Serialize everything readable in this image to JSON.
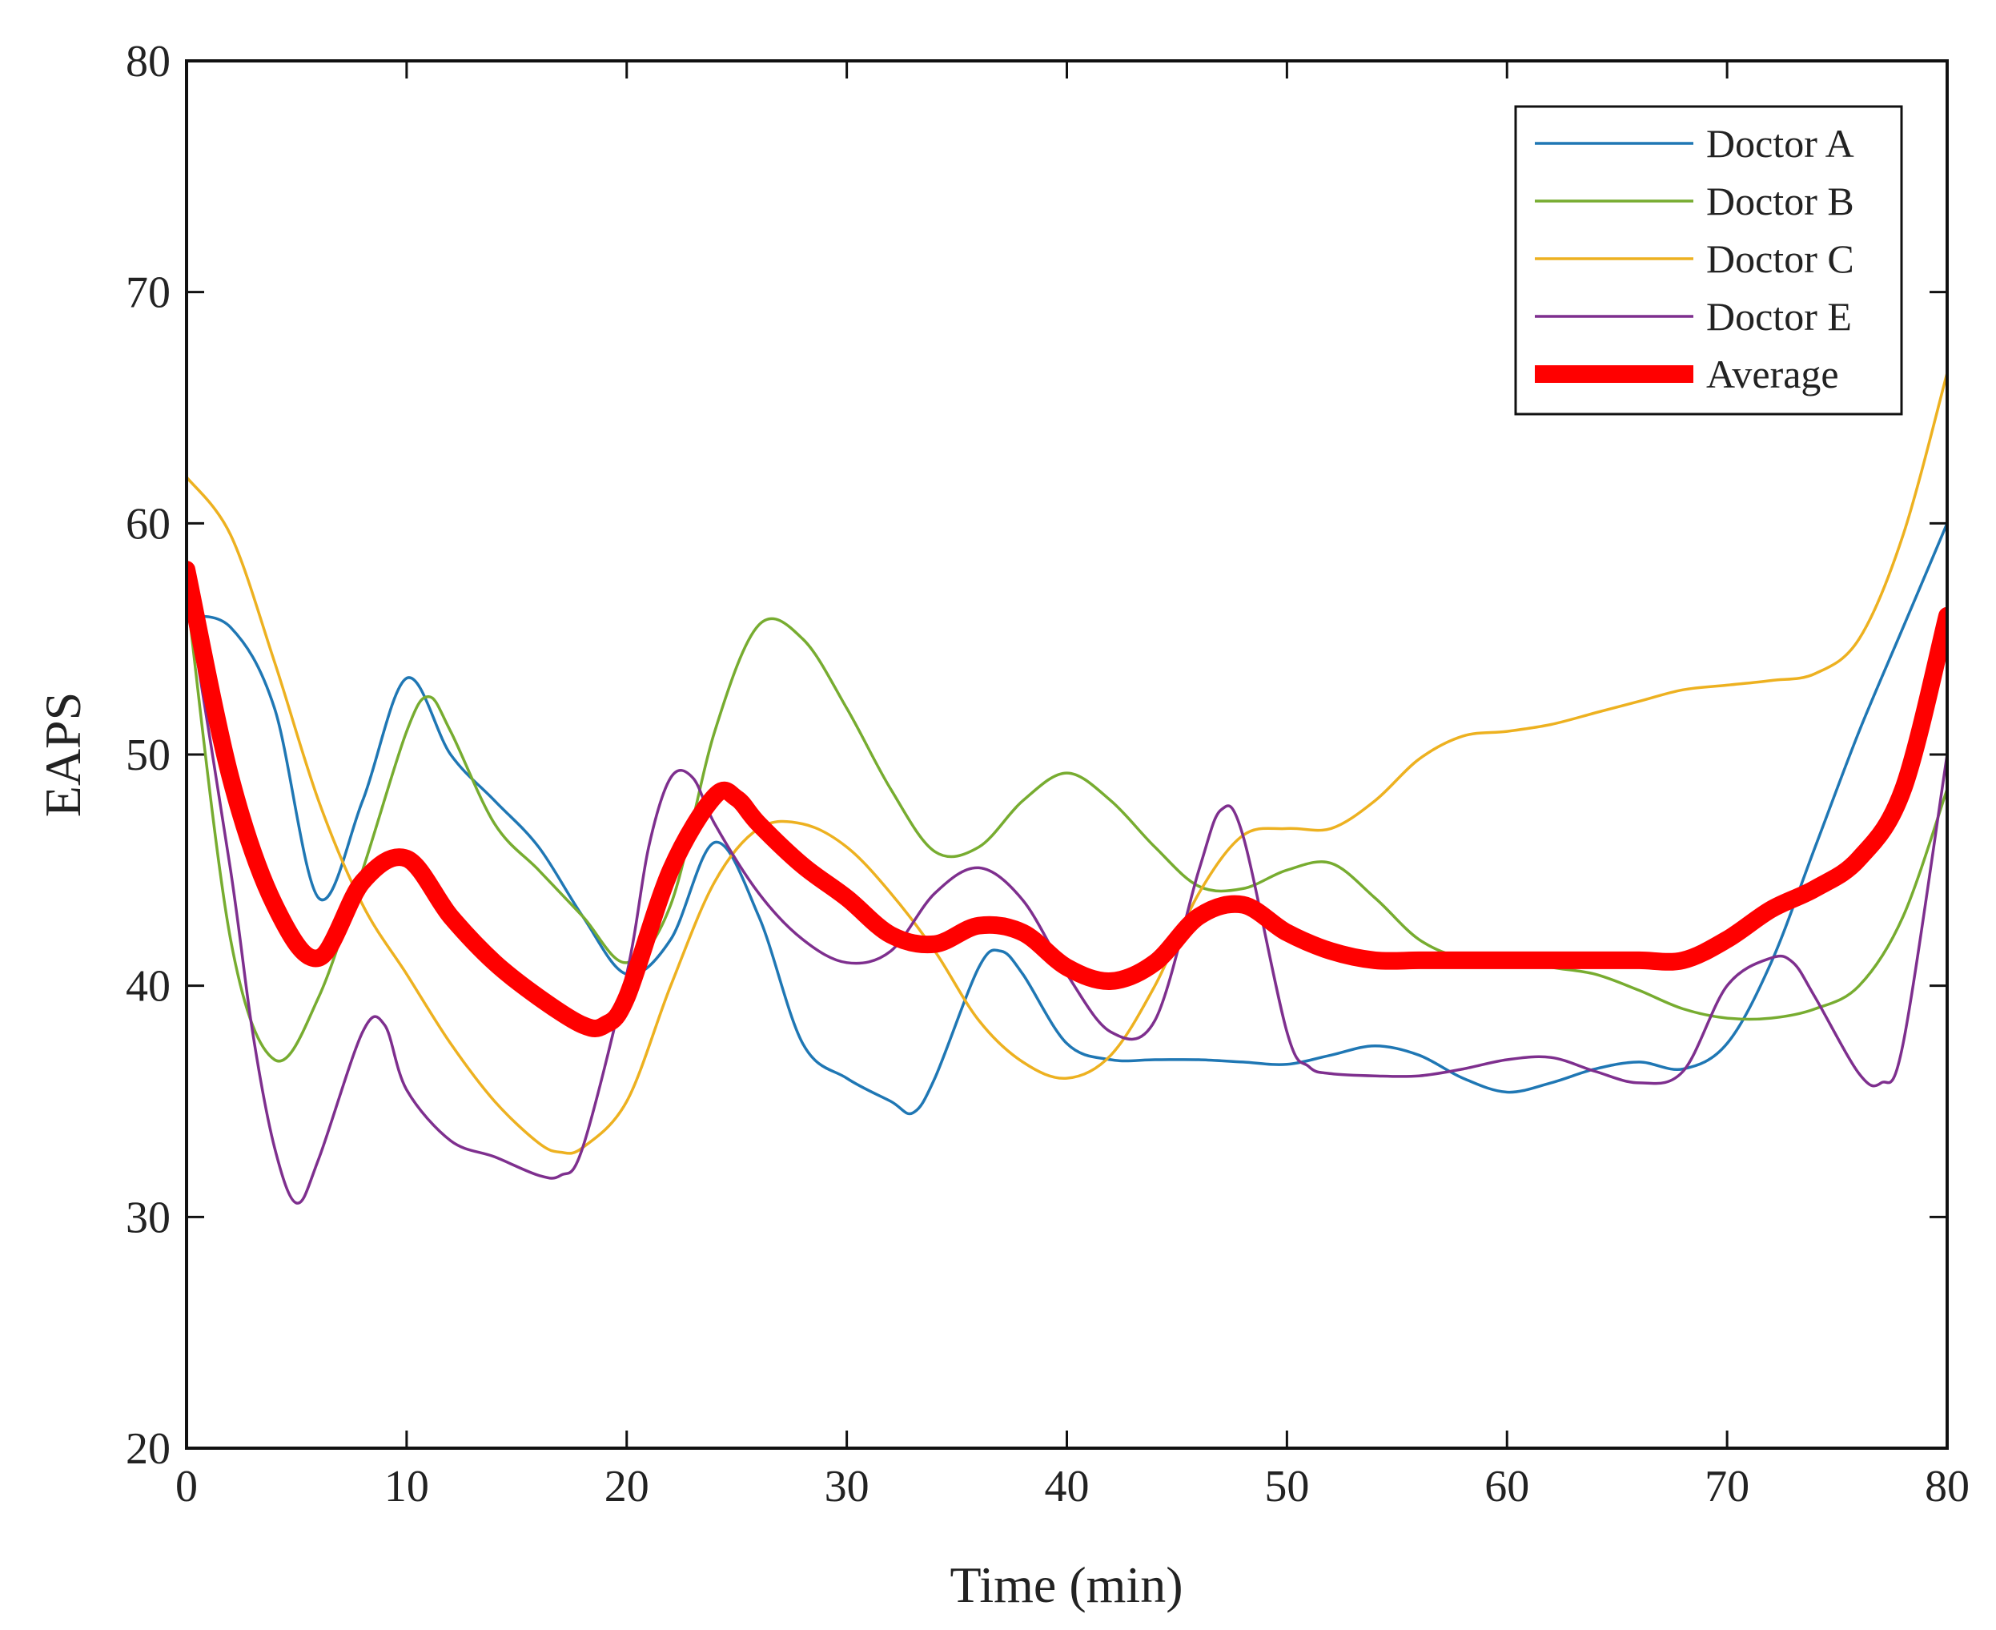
{
  "chart_data": {
    "type": "line",
    "title": "",
    "xlabel": "Time (min)",
    "ylabel": "EAPS",
    "xlim": [
      0,
      80
    ],
    "ylim": [
      20,
      80
    ],
    "xticks": [
      "0",
      "10",
      "20",
      "30",
      "40",
      "50",
      "60",
      "70",
      "80"
    ],
    "yticks": [
      "20",
      "30",
      "40",
      "50",
      "60",
      "70",
      "80"
    ],
    "legend_position": "top-right",
    "series": [
      {
        "name": "Doctor A",
        "color": "#1f77b4",
        "x": [
          0,
          2,
          4,
          6,
          8,
          10,
          12,
          14,
          16,
          18,
          20,
          22,
          24,
          26,
          28,
          30,
          32,
          33,
          34,
          36,
          37,
          38,
          40,
          42,
          44,
          46,
          48,
          50,
          52,
          54,
          56,
          58,
          60,
          62,
          64,
          66,
          68,
          70,
          72,
          74,
          76,
          78,
          80
        ],
        "y": [
          56,
          55.5,
          52,
          43.8,
          48,
          53.3,
          50,
          48,
          46,
          43,
          40.5,
          42,
          46.2,
          43,
          37.5,
          36,
          35,
          34.5,
          36,
          40.8,
          41.5,
          40.5,
          37.5,
          36.8,
          36.8,
          36.8,
          36.7,
          36.6,
          37,
          37.4,
          37,
          36,
          35.4,
          35.8,
          36.4,
          36.7,
          36.4,
          37.5,
          41,
          46,
          51,
          55.5,
          60
        ]
      },
      {
        "name": "Doctor B",
        "color": "#77ac30",
        "x": [
          0,
          2,
          4,
          6,
          8,
          10,
          11,
          12,
          14,
          16,
          18,
          20,
          22,
          24,
          26,
          28,
          30,
          32,
          34,
          36,
          38,
          40,
          42,
          44,
          46,
          48,
          50,
          52,
          54,
          56,
          58,
          60,
          62,
          64,
          66,
          68,
          70,
          72,
          74,
          76,
          78,
          80
        ],
        "y": [
          57,
          42,
          36.8,
          39.5,
          45,
          51,
          52.5,
          51,
          47,
          45,
          43,
          41,
          43.5,
          51,
          55.6,
          55,
          52,
          48.5,
          45.8,
          46,
          48,
          49.2,
          48,
          46,
          44.3,
          44.2,
          45,
          45.3,
          43.8,
          42,
          41.2,
          41.2,
          40.8,
          40.5,
          39.8,
          39,
          38.6,
          38.6,
          39,
          40,
          43,
          48.5
        ]
      },
      {
        "name": "Doctor C",
        "color": "#edb120",
        "x": [
          0,
          2,
          4,
          6,
          8,
          10,
          12,
          14,
          16,
          17,
          18,
          20,
          22,
          24,
          26,
          28,
          30,
          32,
          34,
          36,
          38,
          40,
          42,
          44,
          46,
          48,
          50,
          52,
          54,
          56,
          58,
          60,
          62,
          64,
          66,
          68,
          70,
          72,
          74,
          76,
          78,
          80
        ],
        "y": [
          62,
          59.5,
          54,
          48,
          43.5,
          40.5,
          37.5,
          35,
          33.2,
          32.8,
          33,
          35,
          40,
          44.5,
          46.8,
          47,
          46,
          44,
          41.5,
          38.5,
          36.7,
          36,
          37,
          40,
          44,
          46.5,
          46.8,
          46.8,
          48,
          49.8,
          50.8,
          51,
          51.3,
          51.8,
          52.3,
          52.8,
          53,
          53.2,
          53.5,
          55,
          59.5,
          66.5
        ]
      },
      {
        "name": "Doctor E",
        "color": "#7e2f8e",
        "x": [
          0,
          2,
          3,
          4,
          5,
          6,
          8,
          9,
          10,
          12,
          14,
          16,
          17,
          18,
          20,
          21,
          22,
          23,
          24,
          26,
          28,
          30,
          32,
          34,
          36,
          38,
          40,
          42,
          44,
          46,
          47,
          48,
          50,
          51,
          52,
          54,
          56,
          58,
          60,
          62,
          64,
          66,
          68,
          70,
          72,
          73,
          74,
          76,
          77,
          78,
          80
        ],
        "y": [
          57,
          45,
          38,
          33,
          30.6,
          32.5,
          38,
          38.3,
          35.5,
          33.3,
          32.6,
          31.8,
          31.8,
          33,
          40.5,
          46,
          49,
          49,
          47,
          44,
          42,
          41,
          41.5,
          44,
          45.1,
          43.7,
          40.5,
          38,
          38.5,
          45,
          47.6,
          46.5,
          38,
          36.5,
          36.2,
          36.1,
          36.1,
          36.4,
          36.8,
          36.9,
          36.3,
          35.8,
          36.3,
          40,
          41.2,
          41,
          39.5,
          36.2,
          35.8,
          37.5,
          50
        ]
      },
      {
        "name": "Average",
        "color": "#ff0000",
        "x": [
          0,
          2,
          4,
          6,
          8,
          10,
          12,
          14,
          16,
          18,
          19,
          20,
          22,
          24,
          25,
          26,
          28,
          30,
          32,
          34,
          36,
          38,
          40,
          42,
          44,
          46,
          48,
          50,
          52,
          54,
          56,
          58,
          60,
          62,
          64,
          66,
          68,
          70,
          72,
          74,
          76,
          78,
          80
        ],
        "y": [
          58,
          49,
          43.5,
          41.2,
          44.5,
          45.5,
          43,
          41,
          39.5,
          38.3,
          38.3,
          39.5,
          45,
          48.2,
          48.1,
          47,
          45.2,
          43.8,
          42.2,
          41.8,
          42.6,
          42.3,
          40.8,
          40.2,
          41,
          43,
          43.5,
          42.3,
          41.5,
          41.1,
          41.1,
          41.1,
          41.1,
          41.1,
          41.1,
          41.1,
          41.1,
          42,
          43.3,
          44.2,
          45.5,
          48.5,
          56
        ]
      }
    ]
  }
}
